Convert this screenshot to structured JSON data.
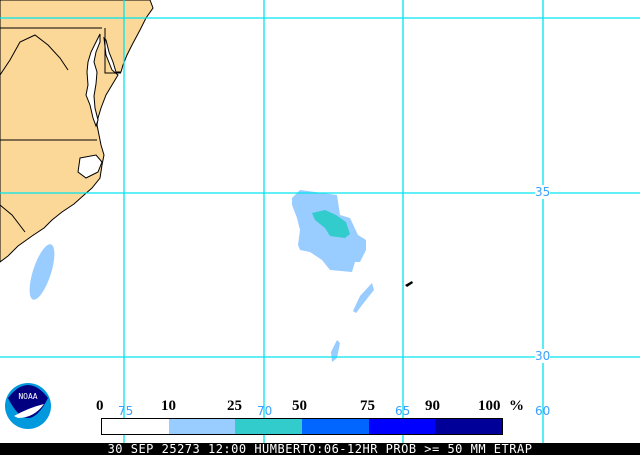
{
  "map": {
    "colors": {
      "land": "#fcd898",
      "grid": "#00e5ee",
      "ocean": "#ffffff",
      "p10": "#99ccff",
      "p25": "#33cccc",
      "p50": "#0066ff",
      "p75": "#0000ff",
      "p90": "#000099"
    },
    "grid_labels": {
      "lon": [
        "75",
        "70",
        "65",
        "60"
      ],
      "lat": [
        "35",
        "30"
      ]
    }
  },
  "legend": {
    "ticks": [
      "0",
      "10",
      "25",
      "50",
      "75",
      "90",
      "100"
    ],
    "unit": "%"
  },
  "footer": {
    "text": "30 SEP 25273 12:00 HUMBERTO:06-12HR PROB >= 50 MM ETRAP"
  },
  "logo": {
    "text": "NOAA"
  }
}
